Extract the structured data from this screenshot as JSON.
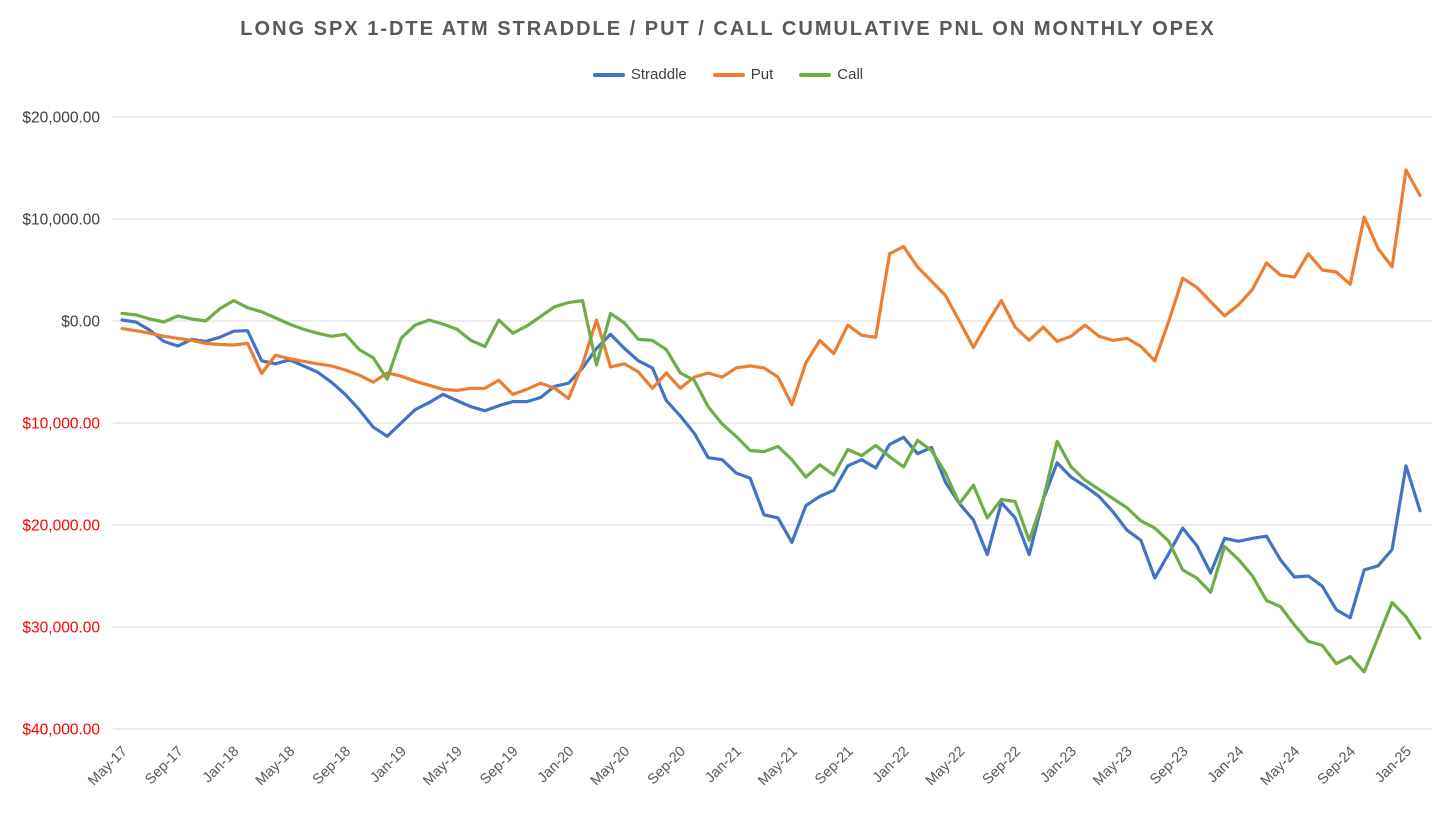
{
  "chart": {
    "title": "LONG SPX 1-DTE ATM STRADDLE / PUT / CALL CUMULATIVE PNL ON MONTHLY OPEX"
  },
  "chart_data": {
    "type": "line",
    "title": "LONG SPX 1-DTE ATM STRADDLE / PUT / CALL CUMULATIVE PNL ON MONTHLY OPEX",
    "xlabel": "",
    "ylabel": "",
    "grid": true,
    "legend_position": "top",
    "ylim": [
      -40000,
      20000
    ],
    "y_ticks": [
      20000,
      10000,
      0,
      -10000,
      -20000,
      -30000,
      -40000
    ],
    "y_tick_labels": [
      "$20,000.00",
      "$10,000.00",
      "$0.00",
      "$10,000.00",
      "$20,000.00",
      "$30,000.00",
      "$40,000.00"
    ],
    "x_tick_step": 4,
    "x_tick_labels": [
      "May-17",
      "Sep-17",
      "Jan-18",
      "May-18",
      "Sep-18",
      "Jan-19",
      "May-19",
      "Sep-19",
      "Jan-20",
      "May-20",
      "Sep-20",
      "Jan-21",
      "May-21",
      "Sep-21",
      "Jan-22",
      "May-22",
      "Sep-22",
      "Jan-23",
      "May-23",
      "Sep-23",
      "Jan-24",
      "May-24",
      "Sep-24",
      "Jan-25"
    ],
    "x": [
      "May-17",
      "Jun-17",
      "Jul-17",
      "Aug-17",
      "Sep-17",
      "Oct-17",
      "Nov-17",
      "Dec-17",
      "Jan-18",
      "Feb-18",
      "Mar-18",
      "Apr-18",
      "May-18",
      "Jun-18",
      "Jul-18",
      "Aug-18",
      "Sep-18",
      "Oct-18",
      "Nov-18",
      "Dec-18",
      "Jan-19",
      "Feb-19",
      "Mar-19",
      "Apr-19",
      "May-19",
      "Jun-19",
      "Jul-19",
      "Aug-19",
      "Sep-19",
      "Oct-19",
      "Nov-19",
      "Dec-19",
      "Jan-20",
      "Feb-20",
      "Mar-20",
      "Apr-20",
      "May-20",
      "Jun-20",
      "Jul-20",
      "Aug-20",
      "Sep-20",
      "Oct-20",
      "Nov-20",
      "Dec-20",
      "Jan-21",
      "Feb-21",
      "Mar-21",
      "Apr-21",
      "May-21",
      "Jun-21",
      "Jul-21",
      "Aug-21",
      "Sep-21",
      "Oct-21",
      "Nov-21",
      "Dec-21",
      "Jan-22",
      "Feb-22",
      "Mar-22",
      "Apr-22",
      "May-22",
      "Jun-22",
      "Jul-22",
      "Aug-22",
      "Sep-22",
      "Oct-22",
      "Nov-22",
      "Dec-22",
      "Jan-23",
      "Feb-23",
      "Mar-23",
      "Apr-23",
      "May-23",
      "Jun-23",
      "Jul-23",
      "Aug-23",
      "Sep-23",
      "Oct-23",
      "Nov-23",
      "Dec-23",
      "Jan-24",
      "Feb-24",
      "Mar-24",
      "Apr-24",
      "May-24",
      "Jun-24",
      "Jul-24",
      "Aug-24",
      "Sep-24",
      "Oct-24",
      "Nov-24",
      "Dec-24",
      "Jan-25",
      "Feb-25"
    ],
    "series": [
      {
        "name": "Straddle",
        "color": "#4472C4",
        "values": [
          100,
          -100,
          -900,
          -2000,
          -2450,
          -1800,
          -2000,
          -1600,
          -1000,
          -950,
          -3900,
          -4200,
          -3800,
          -4400,
          -5000,
          -6000,
          -7200,
          -8700,
          -10400,
          -11300,
          -10000,
          -8700,
          -8000,
          -7200,
          -7800,
          -8400,
          -8800,
          -8300,
          -7900,
          -7900,
          -7500,
          -6400,
          -6100,
          -4600,
          -2700,
          -1300,
          -2700,
          -3900,
          -4600,
          -7800,
          -9300,
          -11000,
          -13400,
          -13600,
          -14900,
          -15400,
          -19000,
          -19300,
          -21700,
          -18100,
          -17200,
          -16600,
          -14200,
          -13600,
          -14400,
          -12100,
          -11400,
          -13000,
          -12400,
          -15800,
          -17900,
          -19500,
          -22900,
          -17800,
          -19300,
          -22900,
          -17500,
          -13900,
          -15300,
          -16200,
          -17200,
          -18700,
          -20500,
          -21500,
          -25200,
          -22800,
          -20300,
          -22000,
          -24700,
          -21300,
          -21600,
          -21300,
          -21100,
          -23400,
          -25100,
          -25000,
          -26000,
          -28300,
          -29100,
          -24400,
          -24000,
          -22400,
          -14200,
          -18600
        ]
      },
      {
        "name": "Put",
        "color": "#ED7D31",
        "values": [
          -750,
          -950,
          -1200,
          -1500,
          -1700,
          -1900,
          -2200,
          -2300,
          -2350,
          -2200,
          -5150,
          -3350,
          -3700,
          -3950,
          -4200,
          -4400,
          -4800,
          -5300,
          -6000,
          -5100,
          -5400,
          -5900,
          -6300,
          -6700,
          -6800,
          -6600,
          -6600,
          -5800,
          -7200,
          -6700,
          -6100,
          -6600,
          -7600,
          -4200,
          100,
          -4500,
          -4200,
          -5000,
          -6600,
          -5100,
          -6600,
          -5500,
          -5100,
          -5500,
          -4600,
          -4400,
          -4600,
          -5500,
          -8200,
          -4100,
          -1900,
          -3200,
          -400,
          -1400,
          -1600,
          6600,
          7300,
          5300,
          3900,
          2500,
          0,
          -2600,
          -200,
          2000,
          -600,
          -1900,
          -600,
          -2000,
          -1500,
          -400,
          -1500,
          -1900,
          -1700,
          -2500,
          -3900,
          0,
          4200,
          3300,
          1900,
          500,
          1600,
          3100,
          5700,
          4500,
          4300,
          6600,
          5000,
          4800,
          3600,
          10200,
          7100,
          5300,
          14800,
          12300
        ]
      },
      {
        "name": "Call",
        "color": "#70AD47",
        "values": [
          750,
          600,
          200,
          -100,
          500,
          200,
          0,
          1200,
          2000,
          1300,
          900,
          300,
          -300,
          -800,
          -1200,
          -1500,
          -1300,
          -2800,
          -3600,
          -5700,
          -1700,
          -400,
          100,
          -300,
          -800,
          -1900,
          -2500,
          100,
          -1200,
          -500,
          450,
          1400,
          1800,
          2000,
          -4300,
          750,
          -200,
          -1800,
          -1900,
          -2800,
          -5100,
          -5800,
          -8400,
          -10100,
          -11300,
          -12700,
          -12800,
          -12300,
          -13600,
          -15300,
          -14100,
          -15100,
          -12600,
          -13200,
          -12200,
          -13300,
          -14300,
          -11700,
          -12700,
          -14900,
          -17900,
          -16100,
          -19300,
          -17500,
          -17700,
          -21500,
          -17500,
          -11800,
          -14300,
          -15600,
          -16500,
          -17400,
          -18300,
          -19600,
          -20300,
          -21600,
          -24400,
          -25200,
          -26600,
          -22100,
          -23400,
          -25000,
          -27400,
          -28000,
          -29800,
          -31400,
          -31800,
          -33600,
          -32900,
          -34400,
          -31000,
          -27600,
          -29000,
          -31100
        ]
      }
    ],
    "style": {
      "gridline_color": "#D9D9D9",
      "tick_color_positive": "#404040",
      "tick_color_negative": "#FF0000",
      "axis_label_color": "#595959",
      "line_width": 3.2
    }
  }
}
